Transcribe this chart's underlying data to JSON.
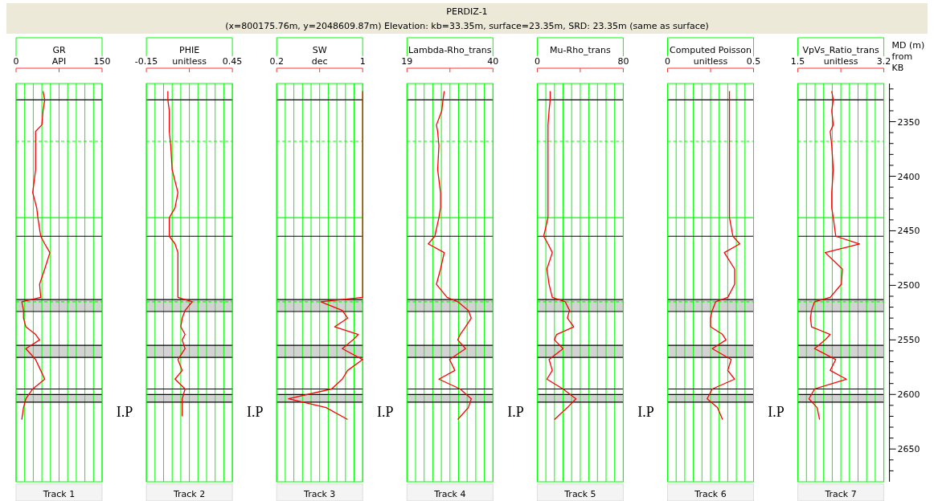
{
  "chart_data": [
    {
      "type": "other",
      "title": "PERDIZ-1",
      "subtitle": "(x=800175.76m, y=2048609.87m) Elevation: kb=33.35m, surface=23.35m, SRD: 23.35m (same as surface)"
    },
    {
      "type": "line",
      "title": "GR",
      "xlabel": "API",
      "xlim": [
        0,
        150
      ],
      "xticks": [
        0,
        {
          "value": 15,
          "label": null
        },
        {
          "value": 30,
          "label": null
        },
        {
          "value": 45,
          "label": null
        },
        {
          "value": 60,
          "label": null
        },
        {
          "value": 75,
          "label": null
        },
        {
          "value": 90,
          "label": null
        },
        {
          "value": 105,
          "label": null
        },
        {
          "value": 120,
          "label": null
        },
        {
          "value": 135,
          "label": null
        },
        150
      ],
      "ylim": [
        2680,
        2315
      ],
      "tick_labels": "x",
      "grid": "x",
      "annotations": [
        "Track 1"
      ],
      "ref_lines": [
        {
          "axis": "y",
          "value": 2330,
          "color": "#000000"
        },
        {
          "axis": "y",
          "value": 2368,
          "color": "#00ff00",
          "line_style": "dashed"
        },
        {
          "axis": "y",
          "value": 2438,
          "color": "#00ff00"
        },
        {
          "axis": "y",
          "value": 2455,
          "color": "#000000"
        },
        {
          "axis": "y",
          "value": 2513,
          "color": "#000000"
        },
        {
          "axis": "y",
          "value": 2515,
          "color": "#00ff00",
          "line_style": "dashed"
        },
        {
          "axis": "y",
          "value": 2524,
          "color": "#000000"
        },
        {
          "axis": "y",
          "value": 2555,
          "color": "#000000"
        },
        {
          "axis": "y",
          "value": 2566,
          "color": "#000000"
        },
        {
          "axis": "y",
          "value": 2595,
          "color": "#000000"
        },
        {
          "axis": "y",
          "value": 2600,
          "color": "#000000"
        },
        {
          "axis": "y",
          "value": 2607,
          "color": "#000000"
        }
      ],
      "bands": [
        {
          "axis": "y",
          "from": 2513,
          "to": 2524,
          "color": "#d3d3d3"
        },
        {
          "axis": "y",
          "from": 2555,
          "to": 2566,
          "color": "#d3d3d3"
        },
        {
          "axis": "y",
          "from": 2600,
          "to": 2607,
          "color": "#d3d3d3"
        }
      ],
      "series": [
        {
          "color": "#ff0000",
          "x": [
            47,
            50,
            47,
            45,
            34,
            34,
            34,
            29,
            36,
            38,
            43,
            50,
            59,
            50,
            41,
            43,
            10,
            13,
            13,
            17,
            34,
            41,
            17,
            34,
            43,
            50,
            29,
            17,
            13,
            10
          ],
          "values": [
            2322,
            2330,
            2340,
            2353,
            2359,
            2372,
            2394,
            2415,
            2429,
            2438,
            2455,
            2462,
            2470,
            2485,
            2499,
            2511,
            2515,
            2523,
            2530,
            2538,
            2545,
            2550,
            2558,
            2568,
            2578,
            2586,
            2595,
            2604,
            2612,
            2623
          ]
        }
      ]
    },
    {
      "type": "line",
      "title": "PHIE",
      "xlabel": "unitless",
      "xlim": [
        -0.15,
        0.45
      ],
      "xticks": [
        -0.15,
        {
          "value": -0.09,
          "label": null
        },
        {
          "value": -0.03,
          "label": null
        },
        {
          "value": 0.03,
          "label": null
        },
        {
          "value": 0.09,
          "label": null
        },
        {
          "value": 0.15,
          "label": null
        },
        {
          "value": 0.21,
          "label": null
        },
        {
          "value": 0.27,
          "label": null
        },
        {
          "value": 0.33,
          "label": null
        },
        {
          "value": 0.39,
          "label": null
        },
        0.45
      ],
      "ylim": [
        2680,
        2315
      ],
      "tick_labels": "x",
      "grid": "x",
      "annotations": [
        "Track 2",
        "I.P"
      ],
      "ref_lines": [
        {
          "axis": "y",
          "value": 2330,
          "color": "#000000"
        },
        {
          "axis": "y",
          "value": 2368,
          "color": "#00ff00",
          "line_style": "dashed"
        },
        {
          "axis": "y",
          "value": 2438,
          "color": "#00ff00"
        },
        {
          "axis": "y",
          "value": 2455,
          "color": "#000000"
        },
        {
          "axis": "y",
          "value": 2513,
          "color": "#000000"
        },
        {
          "axis": "y",
          "value": 2515,
          "color": "#00ff00",
          "line_style": "dashed"
        },
        {
          "axis": "y",
          "value": 2524,
          "color": "#000000"
        },
        {
          "axis": "y",
          "value": 2555,
          "color": "#000000"
        },
        {
          "axis": "y",
          "value": 2566,
          "color": "#000000"
        },
        {
          "axis": "y",
          "value": 2595,
          "color": "#000000"
        },
        {
          "axis": "y",
          "value": 2600,
          "color": "#000000"
        },
        {
          "axis": "y",
          "value": 2607,
          "color": "#000000"
        }
      ],
      "bands": [
        {
          "axis": "y",
          "from": 2513,
          "to": 2524,
          "color": "#d3d3d3"
        },
        {
          "axis": "y",
          "from": 2555,
          "to": 2566,
          "color": "#d3d3d3"
        },
        {
          "axis": "y",
          "from": 2600,
          "to": 2607,
          "color": "#d3d3d3"
        }
      ],
      "series": [
        {
          "color": "#ff0000",
          "x": [
            0.0,
            0.0,
            0.01,
            0.01,
            0.01,
            0.02,
            0.03,
            0.07,
            0.05,
            0.01,
            0.01,
            0.05,
            0.07,
            0.07,
            0.07,
            0.07,
            0.17,
            0.12,
            0.1,
            0.09,
            0.12,
            0.1,
            0.12,
            0.07,
            0.1,
            0.05,
            0.12,
            0.1,
            0.1,
            0.1
          ],
          "values": [
            2322,
            2330,
            2340,
            2353,
            2359,
            2372,
            2394,
            2415,
            2429,
            2438,
            2455,
            2462,
            2470,
            2485,
            2499,
            2511,
            2515,
            2523,
            2530,
            2538,
            2545,
            2550,
            2558,
            2568,
            2578,
            2586,
            2595,
            2604,
            2612,
            2620
          ]
        }
      ]
    },
    {
      "type": "line",
      "title": "SW",
      "xlabel": "dec",
      "xlim": [
        0.2,
        1
      ],
      "xticks": [
        0.2,
        {
          "value": 0.28,
          "label": null
        },
        {
          "value": 0.36,
          "label": null
        },
        {
          "value": 0.44,
          "label": null
        },
        {
          "value": 0.52,
          "label": null
        },
        {
          "value": 0.6,
          "label": null
        },
        {
          "value": 0.68,
          "label": null
        },
        {
          "value": 0.76,
          "label": null
        },
        {
          "value": 0.84,
          "label": null
        },
        {
          "value": 0.92,
          "label": null
        },
        1
      ],
      "ylim": [
        2680,
        2315
      ],
      "tick_labels": "x",
      "grid": "x",
      "annotations": [
        "Track 3",
        "I.P"
      ],
      "ref_lines": [
        {
          "axis": "y",
          "value": 2330,
          "color": "#000000"
        },
        {
          "axis": "y",
          "value": 2368,
          "color": "#00ff00",
          "line_style": "dashed"
        },
        {
          "axis": "y",
          "value": 2438,
          "color": "#00ff00"
        },
        {
          "axis": "y",
          "value": 2455,
          "color": "#000000"
        },
        {
          "axis": "y",
          "value": 2513,
          "color": "#000000"
        },
        {
          "axis": "y",
          "value": 2515,
          "color": "#00ff00",
          "line_style": "dashed"
        },
        {
          "axis": "y",
          "value": 2524,
          "color": "#000000"
        },
        {
          "axis": "y",
          "value": 2555,
          "color": "#000000"
        },
        {
          "axis": "y",
          "value": 2566,
          "color": "#000000"
        },
        {
          "axis": "y",
          "value": 2595,
          "color": "#000000"
        },
        {
          "axis": "y",
          "value": 2600,
          "color": "#000000"
        },
        {
          "axis": "y",
          "value": 2607,
          "color": "#000000"
        }
      ],
      "bands": [
        {
          "axis": "y",
          "from": 2513,
          "to": 2524,
          "color": "#d3d3d3"
        },
        {
          "axis": "y",
          "from": 2555,
          "to": 2566,
          "color": "#d3d3d3"
        },
        {
          "axis": "y",
          "from": 2600,
          "to": 2607,
          "color": "#d3d3d3"
        }
      ],
      "series": [
        {
          "color": "#ff0000",
          "x": [
            1,
            1,
            1,
            1,
            1,
            1,
            1,
            1,
            1,
            1,
            1,
            1,
            1,
            1,
            1,
            1,
            0.61,
            0.81,
            0.86,
            0.74,
            0.96,
            0.91,
            0.81,
            1,
            0.86,
            0.81,
            0.71,
            0.31,
            0.66,
            0.86
          ],
          "values": [
            2322,
            2330,
            2340,
            2353,
            2359,
            2372,
            2394,
            2415,
            2429,
            2438,
            2455,
            2462,
            2470,
            2485,
            2499,
            2511,
            2515,
            2523,
            2530,
            2538,
            2545,
            2550,
            2558,
            2568,
            2578,
            2586,
            2595,
            2604,
            2612,
            2623
          ]
        }
      ]
    },
    {
      "type": "line",
      "title": "Lambda-Rho_trans",
      "xlim": [
        19,
        40
      ],
      "xticks": [
        19,
        {
          "value": 21.1,
          "label": null
        },
        {
          "value": 23.2,
          "label": null
        },
        {
          "value": 25.3,
          "label": null
        },
        {
          "value": 27.4,
          "label": null
        },
        {
          "value": 29.5,
          "label": null
        },
        {
          "value": 31.6,
          "label": null
        },
        {
          "value": 33.7,
          "label": null
        },
        {
          "value": 35.8,
          "label": null
        },
        {
          "value": 37.9,
          "label": null
        },
        40
      ],
      "ylim": [
        2680,
        2315
      ],
      "tick_labels": "x",
      "grid": "x",
      "annotations": [
        "Track 4",
        "I.P"
      ],
      "ref_lines": [
        {
          "axis": "y",
          "value": 2330,
          "color": "#000000"
        },
        {
          "axis": "y",
          "value": 2368,
          "color": "#00ff00",
          "line_style": "dashed"
        },
        {
          "axis": "y",
          "value": 2438,
          "color": "#00ff00"
        },
        {
          "axis": "y",
          "value": 2455,
          "color": "#000000"
        },
        {
          "axis": "y",
          "value": 2513,
          "color": "#000000"
        },
        {
          "axis": "y",
          "value": 2515,
          "color": "#00ff00",
          "line_style": "dashed"
        },
        {
          "axis": "y",
          "value": 2524,
          "color": "#000000"
        },
        {
          "axis": "y",
          "value": 2555,
          "color": "#000000"
        },
        {
          "axis": "y",
          "value": 2566,
          "color": "#000000"
        },
        {
          "axis": "y",
          "value": 2595,
          "color": "#000000"
        },
        {
          "axis": "y",
          "value": 2600,
          "color": "#000000"
        },
        {
          "axis": "y",
          "value": 2607,
          "color": "#000000"
        }
      ],
      "bands": [
        {
          "axis": "y",
          "from": 2513,
          "to": 2524,
          "color": "#d3d3d3"
        },
        {
          "axis": "y",
          "from": 2555,
          "to": 2566,
          "color": "#d3d3d3"
        },
        {
          "axis": "y",
          "from": 2600,
          "to": 2607,
          "color": "#d3d3d3"
        }
      ],
      "series": [
        {
          "color": "#ff0000",
          "x": [
            28.1,
            27.8,
            27.5,
            26.2,
            26.5,
            26.8,
            26.5,
            27.2,
            27.2,
            26.8,
            25.8,
            24.2,
            28.1,
            27.2,
            26.2,
            28.8,
            31.4,
            34.0,
            34.7,
            33.3,
            32.0,
            31.4,
            33.3,
            29.4,
            30.7,
            26.8,
            32.0,
            34.7,
            34.0,
            31.4
          ],
          "values": [
            2322,
            2330,
            2340,
            2353,
            2359,
            2372,
            2394,
            2415,
            2429,
            2438,
            2455,
            2462,
            2470,
            2485,
            2499,
            2511,
            2515,
            2523,
            2530,
            2538,
            2545,
            2550,
            2558,
            2568,
            2578,
            2586,
            2595,
            2604,
            2612,
            2623
          ]
        }
      ]
    },
    {
      "type": "line",
      "title": "Mu-Rho_trans",
      "xlim": [
        0,
        80
      ],
      "xticks": [
        0,
        {
          "value": 8,
          "label": null
        },
        {
          "value": 16,
          "label": null
        },
        {
          "value": 24,
          "label": null
        },
        {
          "value": 32,
          "label": null
        },
        {
          "value": 40,
          "label": null
        },
        {
          "value": 48,
          "label": null
        },
        {
          "value": 56,
          "label": null
        },
        {
          "value": 64,
          "label": null
        },
        {
          "value": 72,
          "label": null
        },
        80
      ],
      "ylim": [
        2680,
        2315
      ],
      "tick_labels": "x",
      "grid": "x",
      "annotations": [
        "Track 5",
        "I.P"
      ],
      "ref_lines": [
        {
          "axis": "y",
          "value": 2330,
          "color": "#000000"
        },
        {
          "axis": "y",
          "value": 2368,
          "color": "#00ff00",
          "line_style": "dashed"
        },
        {
          "axis": "y",
          "value": 2438,
          "color": "#00ff00"
        },
        {
          "axis": "y",
          "value": 2455,
          "color": "#000000"
        },
        {
          "axis": "y",
          "value": 2513,
          "color": "#000000"
        },
        {
          "axis": "y",
          "value": 2515,
          "color": "#00ff00",
          "line_style": "dashed"
        },
        {
          "axis": "y",
          "value": 2524,
          "color": "#000000"
        },
        {
          "axis": "y",
          "value": 2555,
          "color": "#000000"
        },
        {
          "axis": "y",
          "value": 2566,
          "color": "#000000"
        },
        {
          "axis": "y",
          "value": 2595,
          "color": "#000000"
        },
        {
          "axis": "y",
          "value": 2600,
          "color": "#000000"
        },
        {
          "axis": "y",
          "value": 2607,
          "color": "#000000"
        }
      ],
      "bands": [
        {
          "axis": "y",
          "from": 2513,
          "to": 2524,
          "color": "#d3d3d3"
        },
        {
          "axis": "y",
          "from": 2555,
          "to": 2566,
          "color": "#d3d3d3"
        },
        {
          "axis": "y",
          "from": 2600,
          "to": 2607,
          "color": "#d3d3d3"
        }
      ],
      "series": [
        {
          "color": "#ff0000",
          "x": [
            12,
            12,
            11,
            10,
            10,
            10,
            10,
            10,
            10,
            10,
            6,
            10,
            14,
            9,
            11,
            14,
            26,
            30,
            28,
            34,
            18,
            16,
            24,
            11,
            14,
            9,
            24,
            36,
            28,
            16
          ],
          "values": [
            2322,
            2330,
            2340,
            2353,
            2359,
            2372,
            2394,
            2415,
            2429,
            2438,
            2455,
            2462,
            2470,
            2485,
            2499,
            2511,
            2515,
            2523,
            2530,
            2538,
            2545,
            2550,
            2558,
            2568,
            2578,
            2586,
            2595,
            2604,
            2612,
            2623
          ]
        }
      ]
    },
    {
      "type": "line",
      "title": "Computed Poisson",
      "xlabel": "unitless",
      "xlim": [
        0,
        0.5
      ],
      "xticks": [
        0,
        {
          "value": 0.05,
          "label": null
        },
        {
          "value": 0.1,
          "label": null
        },
        {
          "value": 0.15,
          "label": null
        },
        {
          "value": 0.2,
          "label": null
        },
        {
          "value": 0.25,
          "label": null
        },
        {
          "value": 0.3,
          "label": null
        },
        {
          "value": 0.35,
          "label": null
        },
        {
          "value": 0.4,
          "label": null
        },
        {
          "value": 0.45,
          "label": null
        },
        0.5
      ],
      "ylim": [
        2680,
        2315
      ],
      "tick_labels": "x",
      "grid": "x",
      "annotations": [
        "Track 6",
        "I.P"
      ],
      "ref_lines": [
        {
          "axis": "y",
          "value": 2330,
          "color": "#000000"
        },
        {
          "axis": "y",
          "value": 2368,
          "color": "#00ff00",
          "line_style": "dashed"
        },
        {
          "axis": "y",
          "value": 2438,
          "color": "#00ff00"
        },
        {
          "axis": "y",
          "value": 2455,
          "color": "#000000"
        },
        {
          "axis": "y",
          "value": 2513,
          "color": "#000000"
        },
        {
          "axis": "y",
          "value": 2515,
          "color": "#00ff00",
          "line_style": "dashed"
        },
        {
          "axis": "y",
          "value": 2524,
          "color": "#000000"
        },
        {
          "axis": "y",
          "value": 2555,
          "color": "#000000"
        },
        {
          "axis": "y",
          "value": 2566,
          "color": "#000000"
        },
        {
          "axis": "y",
          "value": 2595,
          "color": "#000000"
        },
        {
          "axis": "y",
          "value": 2600,
          "color": "#000000"
        },
        {
          "axis": "y",
          "value": 2607,
          "color": "#000000"
        }
      ],
      "bands": [
        {
          "axis": "y",
          "from": 2513,
          "to": 2524,
          "color": "#d3d3d3"
        },
        {
          "axis": "y",
          "from": 2555,
          "to": 2566,
          "color": "#d3d3d3"
        },
        {
          "axis": "y",
          "from": 2600,
          "to": 2607,
          "color": "#d3d3d3"
        }
      ],
      "series": [
        {
          "color": "#ff0000",
          "x": [
            0.36,
            0.36,
            0.36,
            0.36,
            0.36,
            0.36,
            0.36,
            0.36,
            0.36,
            0.36,
            0.38,
            0.42,
            0.33,
            0.39,
            0.39,
            0.35,
            0.28,
            0.26,
            0.25,
            0.25,
            0.32,
            0.34,
            0.26,
            0.37,
            0.35,
            0.39,
            0.26,
            0.23,
            0.29,
            0.32
          ],
          "values": [
            2322,
            2330,
            2340,
            2353,
            2359,
            2372,
            2394,
            2415,
            2429,
            2438,
            2455,
            2462,
            2470,
            2485,
            2499,
            2511,
            2515,
            2523,
            2530,
            2538,
            2545,
            2550,
            2558,
            2568,
            2578,
            2586,
            2595,
            2604,
            2612,
            2623
          ]
        }
      ]
    },
    {
      "type": "line",
      "title": "VpVs_Ratio_trans",
      "xlabel": "unitless",
      "ylabel": "MD (m) from KB",
      "xlim": [
        1.5,
        3.2
      ],
      "xticks": [
        1.5,
        {
          "value": 1.67,
          "label": null
        },
        {
          "value": 1.84,
          "label": null
        },
        {
          "value": 2.01,
          "label": null
        },
        {
          "value": 2.18,
          "label": null
        },
        {
          "value": 2.35,
          "label": null
        },
        {
          "value": 2.52,
          "label": null
        },
        {
          "value": 2.69,
          "label": null
        },
        {
          "value": 2.86,
          "label": null
        },
        {
          "value": 3.03,
          "label": null
        },
        3.2
      ],
      "ylim": [
        2680,
        2315
      ],
      "yticks": [
        {
          "value": 2320,
          "label": null
        },
        {
          "value": 2330,
          "label": null
        },
        {
          "value": 2340,
          "label": null
        },
        2350,
        {
          "value": 2360,
          "label": null
        },
        {
          "value": 2370,
          "label": null
        },
        {
          "value": 2380,
          "label": null
        },
        {
          "value": 2390,
          "label": null
        },
        2400,
        {
          "value": 2410,
          "label": null
        },
        {
          "value": 2420,
          "label": null
        },
        {
          "value": 2430,
          "label": null
        },
        {
          "value": 2440,
          "label": null
        },
        2450,
        {
          "value": 2460,
          "label": null
        },
        {
          "value": 2470,
          "label": null
        },
        {
          "value": 2480,
          "label": null
        },
        {
          "value": 2490,
          "label": null
        },
        2500,
        {
          "value": 2510,
          "label": null
        },
        {
          "value": 2520,
          "label": null
        },
        {
          "value": 2530,
          "label": null
        },
        {
          "value": 2540,
          "label": null
        },
        2550,
        {
          "value": 2560,
          "label": null
        },
        {
          "value": 2570,
          "label": null
        },
        {
          "value": 2580,
          "label": null
        },
        {
          "value": 2590,
          "label": null
        },
        2600,
        {
          "value": 2610,
          "label": null
        },
        {
          "value": 2620,
          "label": null
        },
        {
          "value": 2630,
          "label": null
        },
        {
          "value": 2640,
          "label": null
        },
        2650,
        {
          "value": 2660,
          "label": null
        },
        {
          "value": 2670,
          "label": null
        }
      ],
      "grid": "x",
      "annotations": [
        "Track 7",
        "I.P"
      ],
      "ref_lines": [
        {
          "axis": "y",
          "value": 2330,
          "color": "#000000"
        },
        {
          "axis": "y",
          "value": 2368,
          "color": "#00ff00",
          "line_style": "dashed"
        },
        {
          "axis": "y",
          "value": 2438,
          "color": "#00ff00"
        },
        {
          "axis": "y",
          "value": 2455,
          "color": "#000000"
        },
        {
          "axis": "y",
          "value": 2513,
          "color": "#000000"
        },
        {
          "axis": "y",
          "value": 2515,
          "color": "#00ff00",
          "line_style": "dashed"
        },
        {
          "axis": "y",
          "value": 2524,
          "color": "#000000"
        },
        {
          "axis": "y",
          "value": 2555,
          "color": "#000000"
        },
        {
          "axis": "y",
          "value": 2566,
          "color": "#000000"
        },
        {
          "axis": "y",
          "value": 2595,
          "color": "#000000"
        },
        {
          "axis": "y",
          "value": 2600,
          "color": "#000000"
        },
        {
          "axis": "y",
          "value": 2607,
          "color": "#000000"
        }
      ],
      "bands": [
        {
          "axis": "y",
          "from": 2513,
          "to": 2524,
          "color": "#d3d3d3"
        },
        {
          "axis": "y",
          "from": 2555,
          "to": 2566,
          "color": "#d3d3d3"
        },
        {
          "axis": "y",
          "from": 2600,
          "to": 2607,
          "color": "#d3d3d3"
        }
      ],
      "series": [
        {
          "color": "#ff0000",
          "x": [
            2.17,
            2.2,
            2.17,
            2.2,
            2.14,
            2.17,
            2.2,
            2.17,
            2.17,
            2.2,
            2.25,
            2.72,
            2.04,
            2.38,
            2.36,
            2.14,
            1.83,
            1.77,
            1.75,
            1.77,
            2.14,
            2.04,
            1.83,
            2.25,
            2.14,
            2.46,
            1.83,
            1.72,
            1.88,
            1.93
          ],
          "values": [
            2322,
            2330,
            2340,
            2353,
            2359,
            2372,
            2394,
            2415,
            2429,
            2438,
            2455,
            2462,
            2470,
            2485,
            2499,
            2511,
            2515,
            2523,
            2530,
            2538,
            2545,
            2550,
            2558,
            2568,
            2578,
            2586,
            2595,
            2604,
            2612,
            2623
          ]
        }
      ]
    }
  ]
}
